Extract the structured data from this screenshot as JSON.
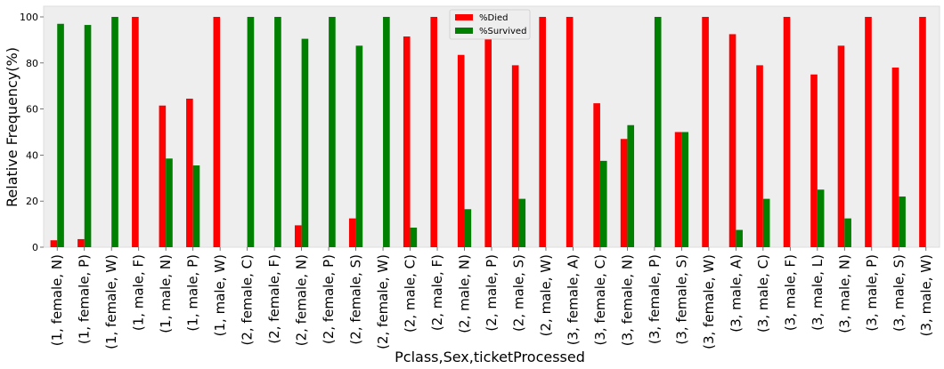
{
  "chart_data": {
    "type": "bar",
    "xlabel": "Pclass,Sex,ticketProcessed",
    "ylabel": "Relative Frequency(%)",
    "ylim": [
      0,
      100
    ],
    "yticks": [
      "0",
      "20",
      "40",
      "60",
      "80",
      "100"
    ],
    "grid": false,
    "legend_position": "top-center",
    "background": "#eeeeee",
    "categories": [
      "(1, female, N)",
      "(1, female, P)",
      "(1, female, W)",
      "(1, male, F)",
      "(1, male, N)",
      "(1, male, P)",
      "(1, male, W)",
      "(2, female, C)",
      "(2, female, F)",
      "(2, female, N)",
      "(2, female, P)",
      "(2, female, S)",
      "(2, female, W)",
      "(2, male, C)",
      "(2, male, F)",
      "(2, male, N)",
      "(2, male, P)",
      "(2, male, S)",
      "(2, male, W)",
      "(3, female, A)",
      "(3, female, C)",
      "(3, female, N)",
      "(3, female, P)",
      "(3, female, S)",
      "(3, female, W)",
      "(3, male, A)",
      "(3, male, C)",
      "(3, male, F)",
      "(3, male, L)",
      "(3, male, N)",
      "(3, male, P)",
      "(3, male, S)",
      "(3, male, W)"
    ],
    "series": [
      {
        "name": "%Died",
        "color": "#ff0000",
        "values": [
          3,
          3.5,
          0,
          100,
          61.5,
          64.5,
          100,
          0,
          0,
          9.5,
          0,
          12.5,
          0,
          91.5,
          100,
          83.5,
          100,
          79,
          100,
          100,
          62.5,
          47,
          0,
          50,
          100,
          92.5,
          79,
          100,
          75,
          87.5,
          100,
          78,
          100
        ]
      },
      {
        "name": "%Survived",
        "color": "#008000",
        "values": [
          97,
          96.5,
          100,
          0,
          38.5,
          35.5,
          0,
          100,
          100,
          90.5,
          100,
          87.5,
          100,
          8.5,
          0,
          16.5,
          0,
          21,
          0,
          0,
          37.5,
          53,
          100,
          50,
          0,
          7.5,
          21,
          0,
          25,
          12.5,
          0,
          22,
          0
        ]
      }
    ]
  }
}
